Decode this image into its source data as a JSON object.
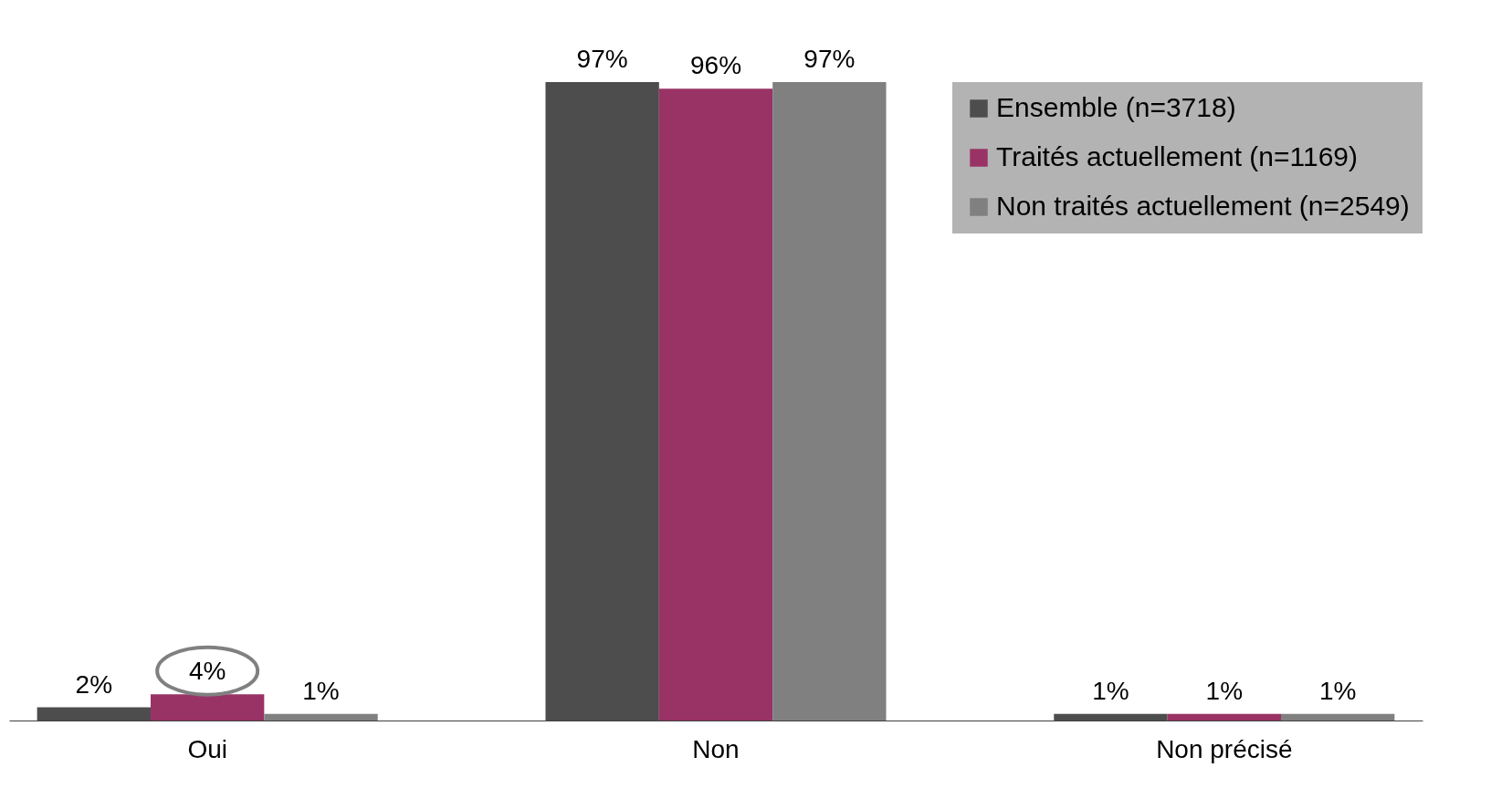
{
  "chart_data": {
    "type": "bar",
    "categories": [
      "Oui",
      "Non",
      "Non précisé"
    ],
    "series": [
      {
        "name": "Ensemble (n=3718)",
        "color": "#4d4d4d",
        "values": [
          2,
          97,
          1
        ],
        "value_labels": [
          "2%",
          "97%",
          "1%"
        ]
      },
      {
        "name": "Traités actuellement (n=1169)",
        "color": "#993366",
        "values": [
          4,
          96,
          1
        ],
        "value_labels": [
          "4%",
          "96%",
          "1%"
        ]
      },
      {
        "name": "Non traités actuellement (n=2549)",
        "color": "#808080",
        "values": [
          1,
          97,
          1
        ],
        "value_labels": [
          "1%",
          "97%",
          "1%"
        ]
      }
    ],
    "legend": "top right",
    "grid": false
  }
}
